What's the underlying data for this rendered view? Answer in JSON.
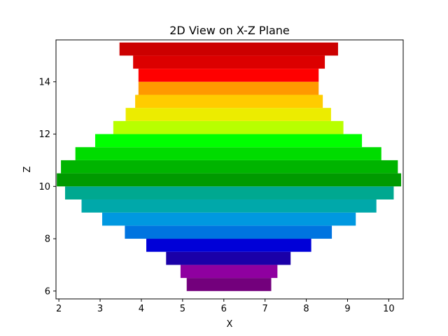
{
  "chart_data": {
    "type": "bar",
    "orientation": "horizontal",
    "title": "2D View on X-Z Plane",
    "xlabel": "X",
    "ylabel": "Z",
    "xlim": [
      1.93,
      10.35
    ],
    "ylim": [
      5.7,
      15.6
    ],
    "xticks": [
      2,
      3,
      4,
      5,
      6,
      7,
      8,
      9,
      10
    ],
    "yticks": [
      6,
      8,
      10,
      12,
      14
    ],
    "bar_height": 0.5,
    "bars": [
      {
        "z": 6.25,
        "x_start": 5.1,
        "x_end": 7.15,
        "color": "#73007c"
      },
      {
        "z": 6.75,
        "x_start": 4.95,
        "x_end": 7.3,
        "color": "#8f00a0"
      },
      {
        "z": 7.25,
        "x_start": 4.6,
        "x_end": 7.62,
        "color": "#1a00a8"
      },
      {
        "z": 7.75,
        "x_start": 4.12,
        "x_end": 8.12,
        "color": "#0000d8"
      },
      {
        "z": 8.25,
        "x_start": 3.6,
        "x_end": 8.62,
        "color": "#0074e0"
      },
      {
        "z": 8.75,
        "x_start": 3.05,
        "x_end": 9.2,
        "color": "#0098e0"
      },
      {
        "z": 9.25,
        "x_start": 2.55,
        "x_end": 9.7,
        "color": "#00a8aa"
      },
      {
        "z": 9.75,
        "x_start": 2.15,
        "x_end": 10.12,
        "color": "#00a890"
      },
      {
        "z": 10.25,
        "x_start": 1.95,
        "x_end": 10.3,
        "color": "#009a00"
      },
      {
        "z": 10.75,
        "x_start": 2.05,
        "x_end": 10.22,
        "color": "#00b400"
      },
      {
        "z": 11.25,
        "x_start": 2.4,
        "x_end": 9.82,
        "color": "#00dc00"
      },
      {
        "z": 11.75,
        "x_start": 2.88,
        "x_end": 9.35,
        "color": "#00ff00"
      },
      {
        "z": 12.25,
        "x_start": 3.32,
        "x_end": 8.9,
        "color": "#b8ff00"
      },
      {
        "z": 12.75,
        "x_start": 3.62,
        "x_end": 8.6,
        "color": "#ecec00"
      },
      {
        "z": 13.25,
        "x_start": 3.85,
        "x_end": 8.4,
        "color": "#ffcc00"
      },
      {
        "z": 13.75,
        "x_start": 3.93,
        "x_end": 8.3,
        "color": "#ff9900"
      },
      {
        "z": 14.25,
        "x_start": 3.93,
        "x_end": 8.3,
        "color": "#ff0000"
      },
      {
        "z": 14.75,
        "x_start": 3.8,
        "x_end": 8.45,
        "color": "#dc0000"
      },
      {
        "z": 15.25,
        "x_start": 3.47,
        "x_end": 8.77,
        "color": "#cc0000"
      }
    ]
  }
}
